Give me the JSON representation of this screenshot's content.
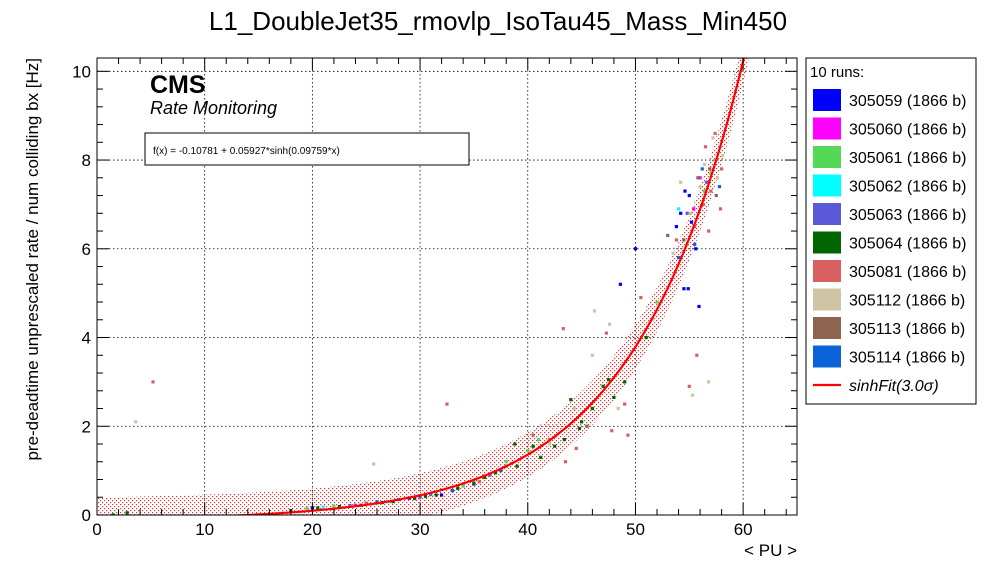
{
  "chart_data": {
    "type": "scatter",
    "title": "L1_DoubleJet35_rmovlp_IsoTau45_Mass_Min450",
    "xlabel": "< PU >",
    "ylabel": "pre-deadtime unprescaled rate / num colliding bx [Hz]",
    "xlim": [
      0,
      65
    ],
    "ylim": [
      0,
      10.3
    ],
    "x_ticks": [
      0,
      10,
      20,
      30,
      40,
      50,
      60
    ],
    "y_ticks": [
      0,
      2,
      4,
      6,
      8,
      10
    ],
    "grid": true,
    "brand": "CMS",
    "subtitle": "Rate Monitoring",
    "fit_label": "f(x) = -0.10781 + 0.05927*sinh(0.09759*x)",
    "fit": {
      "a": -0.10781,
      "b": 0.05927,
      "c": 0.09759,
      "band": 0.5,
      "x_range": [
        0,
        61
      ]
    },
    "legend_placement": "right",
    "legend_title": "10 runs:",
    "series": [
      {
        "name": "305059 (1866 b)",
        "color": "#0000ff",
        "points": [
          [
            54.6,
            7.3
          ],
          [
            55.2,
            6.6
          ],
          [
            54.9,
            5.1
          ],
          [
            48.6,
            5.2
          ],
          [
            55.6,
            6.0
          ],
          [
            54.2,
            6.8
          ],
          [
            55.0,
            7.2
          ],
          [
            32.0,
            0.45
          ],
          [
            29.0,
            0.38
          ],
          [
            25.0,
            0.26
          ],
          [
            20.0,
            0.16
          ],
          [
            35.0,
            0.7
          ],
          [
            50.0,
            6.0
          ],
          [
            55.9,
            4.7
          ],
          [
            53.8,
            6.5
          ],
          [
            54.5,
            5.1
          ]
        ]
      },
      {
        "name": "305060 (1866 b)",
        "color": "#ff00ff",
        "points": [
          [
            56.0,
            7.6
          ],
          [
            55.4,
            6.9
          ],
          [
            24.0,
            0.22
          ],
          [
            30.0,
            0.41
          ]
        ]
      },
      {
        "name": "305061 (1866 b)",
        "color": "#55d855",
        "points": [
          [
            19.5,
            0.15
          ],
          [
            22.0,
            0.2
          ],
          [
            26.0,
            0.27
          ],
          [
            38.0,
            1.2
          ],
          [
            41.0,
            1.7
          ],
          [
            52.0,
            4.8
          ],
          [
            57.0,
            7.7
          ],
          [
            56.4,
            7.3
          ],
          [
            34.0,
            0.65
          ],
          [
            40.0,
            1.45
          ]
        ]
      },
      {
        "name": "305062 (1866 b)",
        "color": "#00ffff",
        "points": [
          [
            27.0,
            0.3
          ],
          [
            33.0,
            0.55
          ],
          [
            54.0,
            6.9
          ],
          [
            21.0,
            0.18
          ]
        ]
      },
      {
        "name": "305063 (1866 b)",
        "color": "#5a5ad8",
        "points": [
          [
            28.0,
            0.35
          ],
          [
            31.0,
            0.46
          ],
          [
            36.5,
            0.9
          ],
          [
            54.8,
            6.8
          ],
          [
            56.6,
            7.5
          ],
          [
            23.5,
            0.21
          ]
        ]
      },
      {
        "name": "305064 (1866 b)",
        "color": "#006400",
        "points": [
          [
            1.5,
            0.0
          ],
          [
            2.8,
            0.05
          ],
          [
            18.0,
            0.1
          ],
          [
            20.5,
            0.16
          ],
          [
            22.5,
            0.19
          ],
          [
            24.5,
            0.22
          ],
          [
            27.5,
            0.3
          ],
          [
            29.5,
            0.37
          ],
          [
            31.5,
            0.45
          ],
          [
            33.5,
            0.6
          ],
          [
            35.0,
            0.72
          ],
          [
            37.0,
            0.95
          ],
          [
            38.8,
            1.6
          ],
          [
            40.5,
            1.55
          ],
          [
            41.2,
            1.3
          ],
          [
            42.5,
            1.55
          ],
          [
            43.4,
            1.7
          ],
          [
            44.0,
            2.6
          ],
          [
            45.0,
            2.1
          ],
          [
            46.0,
            2.4
          ],
          [
            47.0,
            2.9
          ],
          [
            48.0,
            2.65
          ],
          [
            49.0,
            3.0
          ],
          [
            39.0,
            1.1
          ],
          [
            36.0,
            0.85
          ],
          [
            30.5,
            0.42
          ],
          [
            26.5,
            0.28
          ],
          [
            44.8,
            1.95
          ],
          [
            47.5,
            3.05
          ],
          [
            51.0,
            4.0
          ]
        ]
      },
      {
        "name": "305081 (1866 b)",
        "color": "#d86060",
        "points": [
          [
            5.2,
            3.0
          ],
          [
            32.5,
            2.5
          ],
          [
            43.3,
            4.2
          ],
          [
            47.3,
            4.1
          ],
          [
            47.8,
            1.9
          ],
          [
            49.3,
            1.8
          ],
          [
            50.5,
            4.9
          ],
          [
            53.8,
            6.2
          ],
          [
            55.5,
            6.5
          ],
          [
            56.3,
            7.0
          ],
          [
            57.0,
            7.3
          ],
          [
            57.4,
            8.6
          ],
          [
            56.8,
            6.4
          ],
          [
            58.0,
            7.8
          ],
          [
            55.7,
            3.6
          ],
          [
            43.5,
            1.2
          ],
          [
            44.5,
            1.5
          ],
          [
            42.0,
            1.7
          ],
          [
            40.5,
            1.8
          ],
          [
            35.5,
            0.75
          ],
          [
            25.0,
            0.27
          ],
          [
            55.0,
            2.9
          ],
          [
            57.9,
            6.9
          ],
          [
            56.5,
            8.3
          ],
          [
            49.0,
            2.5
          ]
        ]
      },
      {
        "name": "305112 (1866 b)",
        "color": "#cdc5a5",
        "points": [
          [
            3.6,
            2.1
          ],
          [
            25.7,
            1.15
          ],
          [
            46.2,
            4.6
          ],
          [
            47.6,
            4.3
          ],
          [
            48.4,
            2.4
          ],
          [
            51.6,
            4.4
          ],
          [
            55.3,
            2.7
          ],
          [
            56.0,
            7.4
          ],
          [
            56.4,
            7.9
          ],
          [
            57.2,
            8.5
          ],
          [
            56.8,
            3.0
          ],
          [
            46.0,
            3.6
          ],
          [
            42.0,
            1.6
          ],
          [
            44.3,
            2.4
          ],
          [
            54.2,
            7.5
          ],
          [
            55.1,
            6.8
          ],
          [
            57.6,
            7.6
          ],
          [
            53.5,
            5.9
          ],
          [
            58.1,
            8.1
          ]
        ]
      },
      {
        "name": "305113 (1866 b)",
        "color": "#8c6450",
        "points": [
          [
            53.0,
            6.3
          ],
          [
            55.8,
            7.6
          ],
          [
            56.9,
            7.8
          ],
          [
            57.5,
            7.2
          ],
          [
            54.5,
            6.2
          ],
          [
            38.0,
            1.1
          ],
          [
            45.5,
            2.0
          ]
        ]
      },
      {
        "name": "305114 (1866 b)",
        "color": "#0a64d8",
        "points": [
          [
            26.0,
            0.3
          ],
          [
            30.0,
            0.43
          ],
          [
            37.5,
            1.0
          ],
          [
            54.0,
            5.8
          ],
          [
            56.2,
            7.8
          ],
          [
            57.8,
            7.4
          ],
          [
            55.5,
            6.1
          ],
          [
            33.0,
            0.55
          ]
        ]
      }
    ],
    "fit_legend_label": "sinhFit(3.0σ)",
    "fit_color": "#ff0000"
  }
}
